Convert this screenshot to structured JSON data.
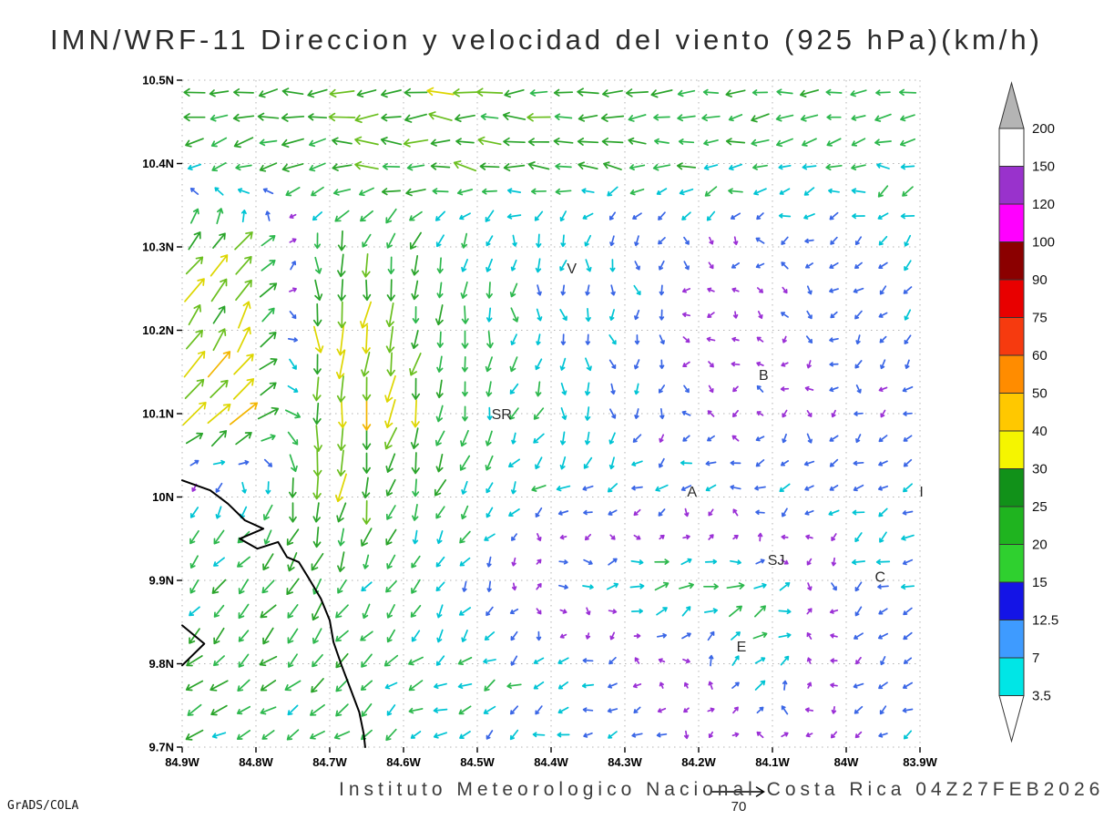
{
  "title": "IMN/WRF-11 Direccion y velocidad del viento (925 hPa)(km/h)",
  "footer": {
    "institute": "Instituto Meteorologico Nacional Costa Rica 04Z27FEB2026",
    "credit": "GrADS/COLA",
    "ref_vector": {
      "label": "70",
      "speed_kmh": 70
    }
  },
  "chart_data": {
    "type": "quiver",
    "title": "IMN/WRF-11 Direccion y velocidad del viento (925 hPa)(km/h)",
    "units": "km/h",
    "level_hpa": 925,
    "valid_time": "04Z27FEB2026",
    "extent": {
      "lon_min": -84.9,
      "lon_max": -83.9,
      "lat_min": 9.7,
      "lat_max": 10.5
    },
    "x_ticks": [
      "84.9W",
      "84.8W",
      "84.7W",
      "84.6W",
      "84.5W",
      "84.4W",
      "84.3W",
      "84.2W",
      "84.1W",
      "84W",
      "83.9W"
    ],
    "y_ticks": [
      "10.5N",
      "10.4N",
      "10.3N",
      "10.2N",
      "10.1N",
      "10N",
      "9.9N",
      "9.8N",
      "9.7N"
    ],
    "grid_on": true,
    "colorbar": {
      "position": "right",
      "levels": [
        3.5,
        7,
        12.5,
        15,
        20,
        25,
        30,
        40,
        50,
        60,
        75,
        90,
        100,
        120,
        150,
        200
      ],
      "segment_colors": [
        "#00e6e6",
        "#3e9bff",
        "#1414e6",
        "#2fd02f",
        "#1fb41f",
        "#119119",
        "#f5f500",
        "#ffc800",
        "#ff8c00",
        "#f63a0f",
        "#e80000",
        "#8b0000",
        "#ff00ff",
        "#9932cc",
        "#ffffff"
      ],
      "over_color": "#b4b4b4",
      "under_color": "#ffffff"
    },
    "stations": [
      {
        "label": "V",
        "lon": -84.372,
        "lat": 10.274
      },
      {
        "label": "B",
        "lon": -84.112,
        "lat": 10.146
      },
      {
        "label": "SR",
        "lon": -84.467,
        "lat": 10.099
      },
      {
        "label": "A",
        "lon": -84.209,
        "lat": 10.006
      },
      {
        "label": "SJ",
        "lon": -84.095,
        "lat": 9.924
      },
      {
        "label": "C",
        "lon": -83.954,
        "lat": 9.904
      },
      {
        "label": "E",
        "lon": -84.142,
        "lat": 9.82
      },
      {
        "label": "I",
        "lon": -83.898,
        "lat": 10.006
      }
    ],
    "coastlines": [
      [
        [
          -84.9,
          10.02
        ],
        [
          -84.862,
          10.008
        ],
        [
          -84.838,
          9.992
        ],
        [
          -84.815,
          9.972
        ],
        [
          -84.79,
          9.962
        ],
        [
          -84.822,
          9.95
        ],
        [
          -84.798,
          9.938
        ],
        [
          -84.77,
          9.946
        ],
        [
          -84.758,
          9.928
        ],
        [
          -84.742,
          9.922
        ],
        [
          -84.728,
          9.902
        ],
        [
          -84.712,
          9.878
        ],
        [
          -84.7,
          9.852
        ],
        [
          -84.695,
          9.826
        ],
        [
          -84.684,
          9.798
        ],
        [
          -84.672,
          9.77
        ],
        [
          -84.66,
          9.742
        ],
        [
          -84.654,
          9.716
        ],
        [
          -84.652,
          9.7
        ]
      ],
      [
        [
          -84.9,
          9.846
        ],
        [
          -84.87,
          9.824
        ],
        [
          -84.9,
          9.798
        ]
      ]
    ],
    "wind_grid": {
      "cols": 11,
      "rows": 9,
      "lon_start": -84.9,
      "lon_step": 0.1,
      "lat_start": 10.5,
      "lat_step": -0.1,
      "uv_kmh": [
        [
          [
            -20,
            -4
          ],
          [
            -24,
            -3
          ],
          [
            -27,
            -2
          ],
          [
            -28,
            -1
          ],
          [
            -27,
            -1
          ],
          [
            -25,
            -1
          ],
          [
            -23,
            -2
          ],
          [
            -21,
            -2
          ],
          [
            -19,
            -3
          ],
          [
            -18,
            -3
          ],
          [
            -16,
            -3
          ]
        ],
        [
          [
            -18,
            -6
          ],
          [
            -22,
            -5
          ],
          [
            -25,
            -3
          ],
          [
            -24,
            2
          ],
          [
            -23,
            4
          ],
          [
            -21,
            3
          ],
          [
            -19,
            1
          ],
          [
            -17,
            -1
          ],
          [
            -15,
            -2
          ],
          [
            -14,
            -3
          ],
          [
            -13,
            -3
          ]
        ],
        [
          [
            22,
            26
          ],
          [
            16,
            22
          ],
          [
            -3,
            -22
          ],
          [
            -6,
            -20
          ],
          [
            -4,
            -14
          ],
          [
            -1,
            -11
          ],
          [
            1,
            -9
          ],
          [
            -3,
            -5
          ],
          [
            -4,
            -4
          ],
          [
            -7,
            -6
          ],
          [
            -8,
            -8
          ]
        ],
        [
          [
            20,
            24
          ],
          [
            14,
            30
          ],
          [
            -3,
            -38
          ],
          [
            -5,
            -24
          ],
          [
            -3,
            -15
          ],
          [
            0,
            -12
          ],
          [
            2,
            -10
          ],
          [
            -3,
            -4
          ],
          [
            -3,
            -3
          ],
          [
            -5,
            -5
          ],
          [
            -6,
            -6
          ]
        ],
        [
          [
            26,
            24
          ],
          [
            32,
            30
          ],
          [
            -4,
            -44
          ],
          [
            -6,
            -30
          ],
          [
            -3,
            -15
          ],
          [
            -2,
            -12
          ],
          [
            0,
            -10
          ],
          [
            -4,
            -4
          ],
          [
            -4,
            -3
          ],
          [
            -5,
            -4
          ],
          [
            -5,
            -5
          ]
        ],
        [
          [
            -8,
            -10
          ],
          [
            -6,
            -14
          ],
          [
            -2,
            -30
          ],
          [
            -6,
            -20
          ],
          [
            -8,
            -12
          ],
          [
            -10,
            -8
          ],
          [
            -12,
            -4
          ],
          [
            -12,
            -3
          ],
          [
            -10,
            -3
          ],
          [
            -8,
            -4
          ],
          [
            -8,
            -5
          ]
        ],
        [
          [
            -12,
            -12
          ],
          [
            -12,
            -14
          ],
          [
            -10,
            -16
          ],
          [
            -8,
            -12
          ],
          [
            -4,
            -9
          ],
          [
            8,
            2
          ],
          [
            16,
            4
          ],
          [
            20,
            5
          ],
          [
            14,
            3
          ],
          [
            -9,
            -5
          ],
          [
            -10,
            -6
          ]
        ],
        [
          [
            -15,
            -12
          ],
          [
            -15,
            -13
          ],
          [
            -13,
            -12
          ],
          [
            -12,
            -10
          ],
          [
            -12,
            -8
          ],
          [
            -10,
            -5
          ],
          [
            -7,
            -2
          ],
          [
            4,
            7
          ],
          [
            8,
            11
          ],
          [
            -5,
            -5
          ],
          [
            -8,
            -5
          ]
        ],
        [
          [
            -15,
            -9
          ],
          [
            -14,
            -8
          ],
          [
            -12,
            -8
          ],
          [
            -10,
            -6
          ],
          [
            -9,
            -5
          ],
          [
            -8,
            -4
          ],
          [
            -8,
            -4
          ],
          [
            -6,
            -4
          ],
          [
            4,
            5
          ],
          [
            -6,
            -4
          ],
          [
            -8,
            -4
          ]
        ]
      ]
    },
    "arrow_grid": {
      "nx": 30,
      "ny": 27
    },
    "seed": 20260227,
    "arrow_speed_colors": [
      {
        "max": 6,
        "color": "#9b30d6"
      },
      {
        "max": 9.5,
        "color": "#3a66e6"
      },
      {
        "max": 14,
        "color": "#00c4d4"
      },
      {
        "max": 20,
        "color": "#2db84d"
      },
      {
        "max": 27,
        "color": "#2aa42a"
      },
      {
        "max": 33,
        "color": "#6abf1f"
      },
      {
        "max": 42,
        "color": "#ddd600"
      },
      {
        "max": 52,
        "color": "#f2b500"
      },
      {
        "max": 64,
        "color": "#f7820f"
      },
      {
        "max": 80,
        "color": "#ee3f1c"
      },
      {
        "max": 9999,
        "color": "#e00000"
      }
    ]
  }
}
